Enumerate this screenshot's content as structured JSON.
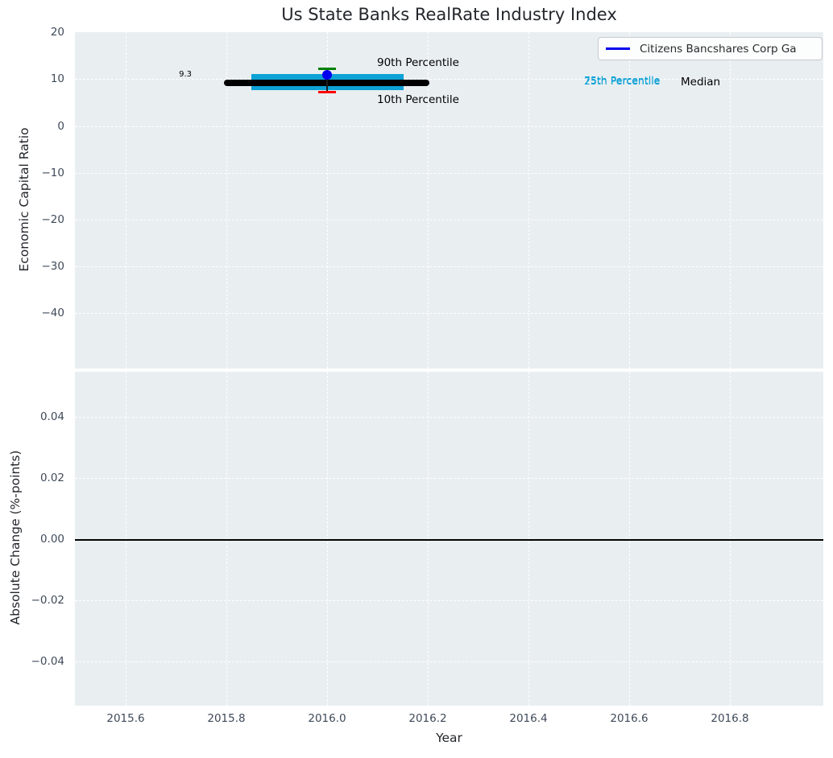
{
  "title": "Us State Banks RealRate Industry Index",
  "legend": {
    "label": "Citizens Bancshares Corp Ga",
    "line_color": "#0000ee",
    "position": "upper right"
  },
  "top_plot": {
    "ylabel": "Economic Capital Ratio",
    "ytick_labels": [
      "20",
      "10",
      "0",
      "−10",
      "−20",
      "−30",
      "−40"
    ],
    "median_value_label": "9.3",
    "p90_label": "90th Percentile",
    "p10_label": "10th Percentile",
    "p75_label": "75th Percentile",
    "p25_label": "25th Percentile",
    "median_label": "Median"
  },
  "bottom_plot": {
    "ylabel": "Absolute Change (%-points)",
    "xlabel": "Year",
    "ytick_labels": [
      "0.04",
      "0.02",
      "0.00",
      "−0.02",
      "−0.04"
    ],
    "xtick_labels": [
      "2015.6",
      "2015.8",
      "2016.0",
      "2016.2",
      "2016.4",
      "2016.6",
      "2016.8"
    ]
  },
  "colors": {
    "axes_background": "#e9eef1",
    "grid": "#ffffff",
    "tick_label": "#3e4a59",
    "band": "#0da2d6",
    "median": "#000000",
    "p90": "#008000",
    "p10": "#ff0000",
    "company_point": "#0000ee"
  },
  "chart_data": [
    {
      "type": "scatter",
      "title": "Us State Banks RealRate Industry Index",
      "xlabel": "Year",
      "ylabel": "Economic Capital Ratio",
      "xlim": [
        2015.5,
        2016.99
      ],
      "ylim": [
        -51.7,
        20
      ],
      "xticks": [
        2015.6,
        2015.8,
        2016.0,
        2016.2,
        2016.4,
        2016.6,
        2016.8
      ],
      "yticks": [
        20,
        10,
        0,
        -10,
        -20,
        -30,
        -40
      ],
      "grid": true,
      "legend_position": "upper right",
      "series": [
        {
          "name": "Citizens Bancshares Corp Ga",
          "type": "scatter",
          "color": "#0000ee",
          "x": [
            2016.0
          ],
          "y": [
            11.0
          ]
        },
        {
          "name": "Median",
          "type": "line",
          "color": "#000000",
          "x": [
            2015.8,
            2016.21
          ],
          "y": [
            9.3,
            9.3
          ]
        },
        {
          "name": "25th-75th Percentile band",
          "type": "bar",
          "color": "#0da2d6",
          "x_span": [
            2015.85,
            2016.15
          ],
          "y_span": [
            7.7,
            11.1
          ]
        },
        {
          "name": "90th Percentile",
          "type": "tick-marker",
          "color": "#008000",
          "x": [
            2016.0
          ],
          "y": [
            12.3
          ]
        },
        {
          "name": "10th Percentile",
          "type": "tick-marker",
          "color": "#ff0000",
          "x": [
            2016.0
          ],
          "y": [
            7.2
          ]
        }
      ],
      "annotations": [
        {
          "text": "9.3",
          "x": 2015.73,
          "y": 9.3,
          "color": "#000000"
        },
        {
          "text": "90th Percentile",
          "x": 2016.1,
          "y": 13.5,
          "color": "#000000"
        },
        {
          "text": "10th Percentile",
          "x": 2016.1,
          "y": 5.6,
          "color": "#000000"
        },
        {
          "text": "75th Percentile",
          "x": 2016.51,
          "y": 9.7,
          "color": "#0da2d6"
        },
        {
          "text": "25th Percentile",
          "x": 2016.51,
          "y": 9.5,
          "color": "#0da2d6"
        },
        {
          "text": "Median",
          "x": 2016.7,
          "y": 9.3,
          "color": "#000000"
        }
      ]
    },
    {
      "type": "line",
      "xlabel": "Year",
      "ylabel": "Absolute Change (%-points)",
      "xlim": [
        2015.5,
        2016.99
      ],
      "ylim": [
        -0.055,
        0.055
      ],
      "xticks": [
        2015.6,
        2015.8,
        2016.0,
        2016.2,
        2016.4,
        2016.6,
        2016.8
      ],
      "yticks": [
        0.04,
        0.02,
        0.0,
        -0.02,
        -0.04
      ],
      "grid": true,
      "series": [
        {
          "name": "zero baseline",
          "type": "hline",
          "color": "#000000",
          "y": 0.0
        }
      ]
    }
  ]
}
